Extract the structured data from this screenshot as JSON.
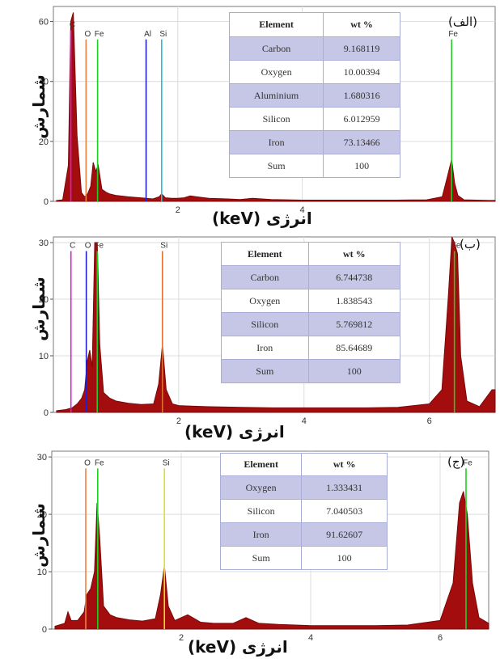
{
  "colors": {
    "spectrum": "#a30d0d",
    "C": "#d020d0",
    "O": "#f08040",
    "Fe": "#20d020",
    "Al": "#2020d0",
    "Si": "#20c0e0",
    "Si_b": "#e07030",
    "table_shade": "#c6c7e6"
  },
  "chart_data": [
    {
      "type": "area",
      "tag": "(الف)",
      "ylabel": "شمارش",
      "xlabel": "انرژی (keV)",
      "ylim": [
        0,
        65
      ],
      "xlim": [
        0,
        7.1
      ],
      "yticks": [
        0,
        20,
        40,
        60
      ],
      "xticks": [
        2,
        4
      ],
      "spectrum": {
        "x": [
          0.05,
          0.15,
          0.24,
          0.28,
          0.32,
          0.38,
          0.45,
          0.5,
          0.55,
          0.6,
          0.64,
          0.68,
          0.72,
          0.78,
          0.85,
          0.9,
          1.0,
          1.2,
          1.4,
          1.49,
          1.6,
          1.7,
          1.74,
          1.8,
          1.9,
          2.0,
          2.1,
          2.2,
          2.3,
          2.5,
          2.8,
          3.0,
          3.2,
          3.5,
          4.0,
          4.5,
          5.0,
          5.5,
          6.0,
          6.25,
          6.33,
          6.4,
          6.45,
          6.5,
          6.6,
          7.0,
          7.1
        ],
        "y": [
          0.3,
          0.5,
          12,
          60,
          63,
          22,
          3,
          1.5,
          2.5,
          5,
          13,
          10,
          12,
          4,
          3,
          2.5,
          2,
          1.5,
          1.2,
          1.0,
          0.8,
          1.5,
          2.5,
          1.2,
          1.0,
          1.0,
          1.2,
          1.8,
          1.5,
          1.0,
          0.8,
          0.6,
          1.0,
          0.6,
          0.4,
          0.4,
          0.4,
          0.4,
          0.5,
          1.5,
          8,
          14,
          6,
          2,
          0.5,
          0.3,
          0.3
        ]
      },
      "peaks": [
        {
          "label": "C",
          "x": 0.28,
          "h": 57,
          "color": "#d020d0"
        },
        {
          "label": "O",
          "x": 0.525,
          "h": 54,
          "color": "#f08040"
        },
        {
          "label": "Fe",
          "x": 0.71,
          "h": 54,
          "color": "#20d020"
        },
        {
          "label": "Al",
          "x": 1.49,
          "h": 54,
          "color": "#2020d0"
        },
        {
          "label": "Si",
          "x": 1.74,
          "h": 54,
          "color": "#20c0e0"
        },
        {
          "label": "Fe",
          "x": 6.4,
          "h": 54,
          "color": "#20d020"
        }
      ],
      "table": {
        "headers": [
          "Element",
          "wt %"
        ],
        "rows": [
          [
            "Carbon",
            "9.168119"
          ],
          [
            "Oxygen",
            "10.00394"
          ],
          [
            "Aluminium",
            "1.680316"
          ],
          [
            "Silicon",
            "6.012959"
          ],
          [
            "Iron",
            "73.13466"
          ],
          [
            "Sum",
            "100"
          ]
        ]
      }
    },
    {
      "type": "area",
      "tag": "(ب)",
      "ylabel": "شمارش",
      "xlabel": "انرژی (keV)",
      "ylim": [
        0,
        31
      ],
      "xlim": [
        0,
        7.05
      ],
      "yticks": [
        0,
        10,
        20,
        30
      ],
      "xticks": [
        2,
        4,
        6
      ],
      "spectrum": {
        "x": [
          0.05,
          0.2,
          0.3,
          0.38,
          0.45,
          0.5,
          0.54,
          0.58,
          0.62,
          0.66,
          0.7,
          0.74,
          0.8,
          0.9,
          1.0,
          1.2,
          1.4,
          1.6,
          1.68,
          1.74,
          1.8,
          1.9,
          2.0,
          2.2,
          2.5,
          3.0,
          3.5,
          4.0,
          4.5,
          5.0,
          5.5,
          6.0,
          6.2,
          6.3,
          6.36,
          6.4,
          6.45,
          6.5,
          6.6,
          6.8,
          7.0,
          7.05
        ],
        "y": [
          0.3,
          0.5,
          0.8,
          1.5,
          2.5,
          4,
          9,
          11,
          8,
          30,
          30,
          12,
          3.5,
          2.5,
          2,
          1.6,
          1.4,
          1.5,
          5,
          12,
          4,
          1.5,
          1.2,
          1.1,
          1.0,
          0.9,
          0.8,
          0.8,
          0.8,
          0.8,
          0.9,
          1.5,
          4,
          20,
          31,
          30,
          28,
          10,
          2,
          1,
          4,
          4
        ]
      },
      "peaks": [
        {
          "label": "C",
          "x": 0.28,
          "h": 28.5,
          "color": "#d020d0"
        },
        {
          "label": "O",
          "x": 0.525,
          "h": 28.5,
          "color": "#2020d0"
        },
        {
          "label": "Fe",
          "x": 0.7,
          "h": 28.5,
          "color": "#20d020"
        },
        {
          "label": "Si",
          "x": 1.74,
          "h": 28.5,
          "color": "#e07030"
        },
        {
          "label": "Fe",
          "x": 6.4,
          "h": 28.5,
          "color": "#20d020"
        }
      ],
      "table": {
        "headers": [
          "Element",
          "wt %"
        ],
        "rows": [
          [
            "Carbon",
            "6.744738"
          ],
          [
            "Oxygen",
            "1.838543"
          ],
          [
            "Silicon",
            "5.769812"
          ],
          [
            "Iron",
            "85.64689"
          ],
          [
            "Sum",
            "100"
          ]
        ]
      }
    },
    {
      "type": "area",
      "tag": "(ج)",
      "ylabel": "شمارش",
      "xlabel": "انرژی (keV)",
      "ylim": [
        0,
        31
      ],
      "xlim": [
        0,
        6.75
      ],
      "yticks": [
        0,
        10,
        20,
        30
      ],
      "xticks": [
        2,
        4,
        6
      ],
      "spectrum": {
        "x": [
          0.05,
          0.2,
          0.25,
          0.3,
          0.4,
          0.5,
          0.54,
          0.6,
          0.66,
          0.7,
          0.74,
          0.8,
          0.9,
          1.0,
          1.2,
          1.4,
          1.6,
          1.68,
          1.74,
          1.8,
          1.9,
          2.1,
          2.3,
          2.5,
          2.8,
          3.0,
          3.2,
          3.5,
          4.0,
          4.5,
          5.0,
          5.5,
          6.0,
          6.2,
          6.3,
          6.36,
          6.42,
          6.5,
          6.6,
          6.75
        ],
        "y": [
          0.5,
          1,
          3,
          1.5,
          1.5,
          3,
          6,
          7,
          10,
          22,
          16,
          4,
          2.5,
          2,
          1.6,
          1.4,
          1.8,
          6,
          11,
          4,
          1.5,
          2.5,
          1.2,
          1.0,
          1.0,
          2.0,
          1.0,
          0.8,
          0.6,
          0.6,
          0.6,
          0.7,
          1.5,
          8,
          22,
          24,
          20,
          8,
          2,
          1
        ]
      },
      "peaks": [
        {
          "label": "O",
          "x": 0.525,
          "h": 28,
          "color": "#f08040"
        },
        {
          "label": "Fe",
          "x": 0.71,
          "h": 28,
          "color": "#20d020"
        },
        {
          "label": "Si",
          "x": 1.74,
          "h": 28,
          "color": "#e0e020"
        },
        {
          "label": "Fe",
          "x": 6.4,
          "h": 28,
          "color": "#20d020"
        }
      ],
      "table": {
        "headers": [
          "Element",
          "wt %"
        ],
        "rows": [
          [
            "Oxygen",
            "1.333431"
          ],
          [
            "Silicon",
            "7.040503"
          ],
          [
            "Iron",
            "91.62607"
          ],
          [
            "Sum",
            "100"
          ]
        ]
      }
    }
  ]
}
